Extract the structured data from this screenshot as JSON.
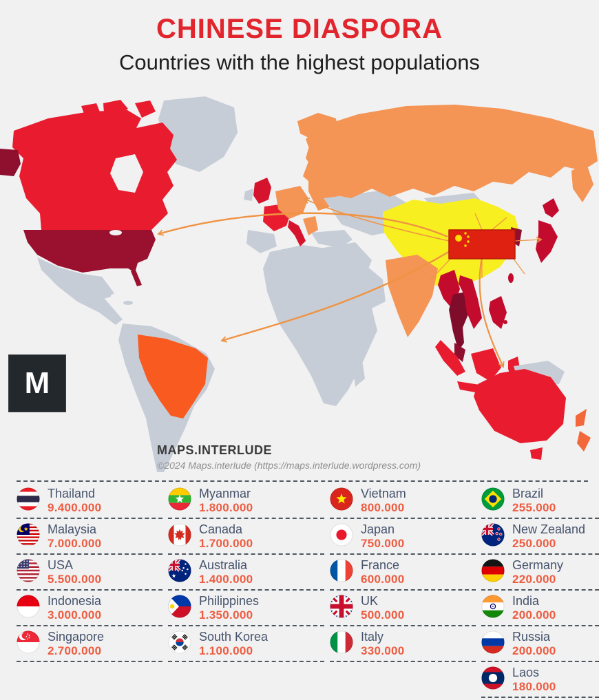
{
  "header": {
    "title": "CHINESE DIASPORA",
    "subtitle": "Countries with the highest populations"
  },
  "map": {
    "logo_letter": "M",
    "attribution_title": "MAPS.INTERLUDE",
    "attribution_copyright": "©2024 Maps.interlude (https://maps.interlude.wordpress.com)",
    "origin_country": "China",
    "arrow_targets": [
      "USA",
      "Europe",
      "Brazil",
      "Australia",
      "Japan"
    ]
  },
  "colors": {
    "background": "#f1f1f2",
    "land_neutral": "#c7cdd7",
    "red": "#e81c2e",
    "dark_red": "#9a1130",
    "crimson": "#c30b2e",
    "deep_maroon": "#7e0c2a",
    "orange": "#f49455",
    "bright_orange": "#f85a20",
    "yellow": "#f8ef20",
    "arrow": "#ef9343",
    "title_red": "#e2242d",
    "country_name_text": "#46536b",
    "value_text": "#ee5c40"
  },
  "legend": {
    "items": [
      {
        "name": "Thailand",
        "value": "9.400.000",
        "flag": "thailand"
      },
      {
        "name": "Myanmar",
        "value": "1.800.000",
        "flag": "myanmar"
      },
      {
        "name": "Vietnam",
        "value": "800.000",
        "flag": "vietnam"
      },
      {
        "name": "Brazil",
        "value": "255.000",
        "flag": "brazil"
      },
      {
        "name": "Malaysia",
        "value": "7.000.000",
        "flag": "malaysia"
      },
      {
        "name": "Canada",
        "value": "1.700.000",
        "flag": "canada"
      },
      {
        "name": "Japan",
        "value": "750.000",
        "flag": "japan"
      },
      {
        "name": "New Zealand",
        "value": "250.000",
        "flag": "new_zealand"
      },
      {
        "name": "USA",
        "value": "5.500.000",
        "flag": "usa"
      },
      {
        "name": "Australia",
        "value": "1.400.000",
        "flag": "australia"
      },
      {
        "name": "France",
        "value": "600.000",
        "flag": "france"
      },
      {
        "name": "Germany",
        "value": "220.000",
        "flag": "germany"
      },
      {
        "name": "Indonesia",
        "value": "3.000.000",
        "flag": "indonesia"
      },
      {
        "name": "Philippines",
        "value": "1.350.000",
        "flag": "philippines"
      },
      {
        "name": "UK",
        "value": "500.000",
        "flag": "uk"
      },
      {
        "name": "India",
        "value": "200.000",
        "flag": "india"
      },
      {
        "name": "Singapore",
        "value": "2.700.000",
        "flag": "singapore"
      },
      {
        "name": "South Korea",
        "value": "1.100.000",
        "flag": "south_korea"
      },
      {
        "name": "Italy",
        "value": "330.000",
        "flag": "italy"
      },
      {
        "name": "Russia",
        "value": "200.000",
        "flag": "russia"
      },
      null,
      null,
      null,
      {
        "name": "Laos",
        "value": "180.000",
        "flag": "laos"
      }
    ]
  },
  "chart_data": {
    "type": "table",
    "title": "Chinese Diaspora — Countries with the highest populations",
    "categories": [
      "Thailand",
      "Malaysia",
      "USA",
      "Indonesia",
      "Singapore",
      "Myanmar",
      "Canada",
      "Australia",
      "Philippines",
      "South Korea",
      "Vietnam",
      "Japan",
      "France",
      "UK",
      "Italy",
      "Brazil",
      "New Zealand",
      "Germany",
      "India",
      "Russia",
      "Laos"
    ],
    "values": [
      9400000,
      7000000,
      5500000,
      3000000,
      2700000,
      1800000,
      1700000,
      1400000,
      1350000,
      1100000,
      800000,
      750000,
      600000,
      500000,
      330000,
      255000,
      250000,
      220000,
      200000,
      200000,
      180000
    ]
  }
}
